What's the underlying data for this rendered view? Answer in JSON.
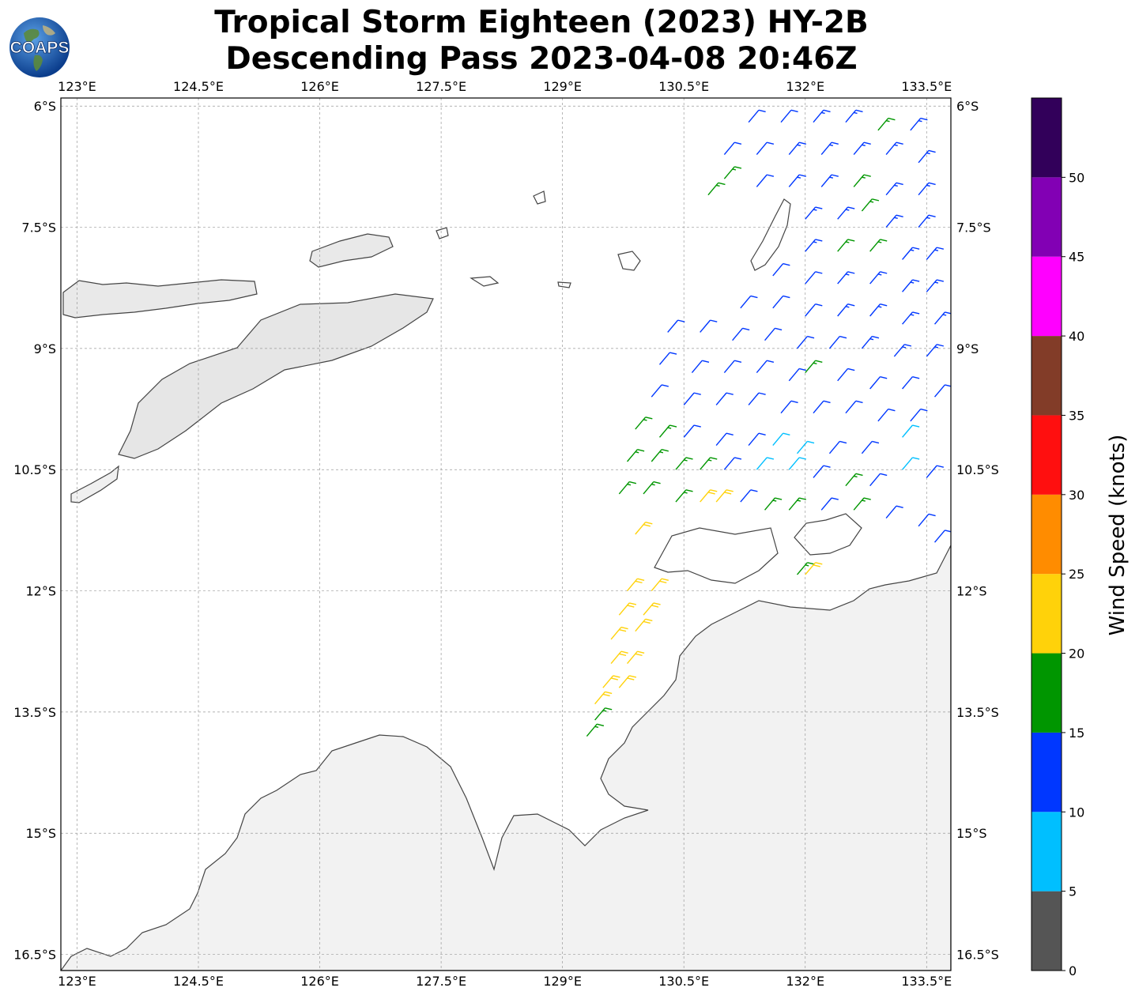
{
  "title": {
    "line1": "Tropical Storm Eighteen (2023) HY-2B",
    "line2": "Descending Pass 2023-04-08 20:46Z"
  },
  "logo": {
    "text": "COAPS",
    "icon": "globe-icon"
  },
  "map": {
    "lon_range": [
      122.8,
      133.8
    ],
    "lat_range": [
      -16.7,
      -5.9
    ],
    "lon_ticks": [
      {
        "value": 123.0,
        "label": "123°E"
      },
      {
        "value": 124.5,
        "label": "124.5°E"
      },
      {
        "value": 126.0,
        "label": "126°E"
      },
      {
        "value": 127.5,
        "label": "127.5°E"
      },
      {
        "value": 129.0,
        "label": "129°E"
      },
      {
        "value": 130.5,
        "label": "130.5°E"
      },
      {
        "value": 132.0,
        "label": "132°E"
      },
      {
        "value": 133.5,
        "label": "133.5°E"
      }
    ],
    "lat_ticks": [
      {
        "value": -6.0,
        "label": "6°S"
      },
      {
        "value": -7.5,
        "label": "7.5°S"
      },
      {
        "value": -9.0,
        "label": "9°S"
      },
      {
        "value": -10.5,
        "label": "10.5°S"
      },
      {
        "value": -12.0,
        "label": "12°S"
      },
      {
        "value": -13.5,
        "label": "13.5°S"
      },
      {
        "value": -15.0,
        "label": "15°S"
      },
      {
        "value": -16.5,
        "label": "16.5°S"
      }
    ],
    "gridlines": true,
    "coastline_color": "#444444",
    "land_fill": "#efefef"
  },
  "wind_barbs": [
    {
      "lon": 131.3,
      "lat": -6.2,
      "kt": 12
    },
    {
      "lon": 131.7,
      "lat": -6.2,
      "kt": 12
    },
    {
      "lon": 132.1,
      "lat": -6.2,
      "kt": 13
    },
    {
      "lon": 132.5,
      "lat": -6.2,
      "kt": 13
    },
    {
      "lon": 132.9,
      "lat": -6.3,
      "kt": 17
    },
    {
      "lon": 133.3,
      "lat": -6.3,
      "kt": 13
    },
    {
      "lon": 131.0,
      "lat": -6.6,
      "kt": 12
    },
    {
      "lon": 131.4,
      "lat": -6.6,
      "kt": 12
    },
    {
      "lon": 131.8,
      "lat": -6.6,
      "kt": 13
    },
    {
      "lon": 132.2,
      "lat": -6.6,
      "kt": 13
    },
    {
      "lon": 132.6,
      "lat": -6.6,
      "kt": 13
    },
    {
      "lon": 133.0,
      "lat": -6.6,
      "kt": 13
    },
    {
      "lon": 133.4,
      "lat": -6.7,
      "kt": 13
    },
    {
      "lon": 131.0,
      "lat": -6.9,
      "kt": 16
    },
    {
      "lon": 131.4,
      "lat": -7.0,
      "kt": 12
    },
    {
      "lon": 131.8,
      "lat": -7.0,
      "kt": 13
    },
    {
      "lon": 132.2,
      "lat": -7.0,
      "kt": 13
    },
    {
      "lon": 132.6,
      "lat": -7.0,
      "kt": 17
    },
    {
      "lon": 133.0,
      "lat": -7.1,
      "kt": 13
    },
    {
      "lon": 133.4,
      "lat": -7.1,
      "kt": 13
    },
    {
      "lon": 130.8,
      "lat": -7.1,
      "kt": 16
    },
    {
      "lon": 132.0,
      "lat": -7.4,
      "kt": 13
    },
    {
      "lon": 132.4,
      "lat": -7.4,
      "kt": 13
    },
    {
      "lon": 132.7,
      "lat": -7.3,
      "kt": 17
    },
    {
      "lon": 133.0,
      "lat": -7.5,
      "kt": 13
    },
    {
      "lon": 133.4,
      "lat": -7.5,
      "kt": 13
    },
    {
      "lon": 132.0,
      "lat": -7.8,
      "kt": 13
    },
    {
      "lon": 132.4,
      "lat": -7.8,
      "kt": 17
    },
    {
      "lon": 132.8,
      "lat": -7.8,
      "kt": 17
    },
    {
      "lon": 133.2,
      "lat": -7.9,
      "kt": 13
    },
    {
      "lon": 133.5,
      "lat": -7.9,
      "kt": 13
    },
    {
      "lon": 131.6,
      "lat": -8.1,
      "kt": 12
    },
    {
      "lon": 132.0,
      "lat": -8.2,
      "kt": 12
    },
    {
      "lon": 132.4,
      "lat": -8.2,
      "kt": 13
    },
    {
      "lon": 132.8,
      "lat": -8.2,
      "kt": 13
    },
    {
      "lon": 133.2,
      "lat": -8.3,
      "kt": 13
    },
    {
      "lon": 133.5,
      "lat": -8.3,
      "kt": 13
    },
    {
      "lon": 131.2,
      "lat": -8.5,
      "kt": 12
    },
    {
      "lon": 131.6,
      "lat": -8.5,
      "kt": 12
    },
    {
      "lon": 132.0,
      "lat": -8.6,
      "kt": 12
    },
    {
      "lon": 132.4,
      "lat": -8.6,
      "kt": 13
    },
    {
      "lon": 132.8,
      "lat": -8.6,
      "kt": 13
    },
    {
      "lon": 133.2,
      "lat": -8.7,
      "kt": 13
    },
    {
      "lon": 133.6,
      "lat": -8.7,
      "kt": 13
    },
    {
      "lon": 130.3,
      "lat": -8.8,
      "kt": 12
    },
    {
      "lon": 130.7,
      "lat": -8.8,
      "kt": 12
    },
    {
      "lon": 131.1,
      "lat": -8.9,
      "kt": 12
    },
    {
      "lon": 131.5,
      "lat": -8.9,
      "kt": 12
    },
    {
      "lon": 131.9,
      "lat": -9.0,
      "kt": 12
    },
    {
      "lon": 132.3,
      "lat": -9.0,
      "kt": 12
    },
    {
      "lon": 132.7,
      "lat": -9.0,
      "kt": 13
    },
    {
      "lon": 133.1,
      "lat": -9.1,
      "kt": 13
    },
    {
      "lon": 133.5,
      "lat": -9.1,
      "kt": 13
    },
    {
      "lon": 130.2,
      "lat": -9.2,
      "kt": 12
    },
    {
      "lon": 130.6,
      "lat": -9.3,
      "kt": 12
    },
    {
      "lon": 131.0,
      "lat": -9.3,
      "kt": 12
    },
    {
      "lon": 131.4,
      "lat": -9.3,
      "kt": 12
    },
    {
      "lon": 131.8,
      "lat": -9.4,
      "kt": 12
    },
    {
      "lon": 132.0,
      "lat": -9.3,
      "kt": 17
    },
    {
      "lon": 132.4,
      "lat": -9.4,
      "kt": 12
    },
    {
      "lon": 132.8,
      "lat": -9.5,
      "kt": 12
    },
    {
      "lon": 133.2,
      "lat": -9.5,
      "kt": 12
    },
    {
      "lon": 133.6,
      "lat": -9.6,
      "kt": 12
    },
    {
      "lon": 130.1,
      "lat": -9.6,
      "kt": 12
    },
    {
      "lon": 130.5,
      "lat": -9.7,
      "kt": 12
    },
    {
      "lon": 130.9,
      "lat": -9.7,
      "kt": 12
    },
    {
      "lon": 131.3,
      "lat": -9.7,
      "kt": 12
    },
    {
      "lon": 131.7,
      "lat": -9.8,
      "kt": 12
    },
    {
      "lon": 132.1,
      "lat": -9.8,
      "kt": 12
    },
    {
      "lon": 132.5,
      "lat": -9.8,
      "kt": 12
    },
    {
      "lon": 132.9,
      "lat": -9.9,
      "kt": 12
    },
    {
      "lon": 133.3,
      "lat": -9.9,
      "kt": 12
    },
    {
      "lon": 129.9,
      "lat": -10.0,
      "kt": 17
    },
    {
      "lon": 130.2,
      "lat": -10.1,
      "kt": 17
    },
    {
      "lon": 130.5,
      "lat": -10.1,
      "kt": 12
    },
    {
      "lon": 130.9,
      "lat": -10.2,
      "kt": 12
    },
    {
      "lon": 131.3,
      "lat": -10.2,
      "kt": 12
    },
    {
      "lon": 131.6,
      "lat": -10.2,
      "kt": 8
    },
    {
      "lon": 131.9,
      "lat": -10.3,
      "kt": 8
    },
    {
      "lon": 132.3,
      "lat": -10.3,
      "kt": 12
    },
    {
      "lon": 132.7,
      "lat": -10.3,
      "kt": 12
    },
    {
      "lon": 133.2,
      "lat": -10.1,
      "kt": 8
    },
    {
      "lon": 129.8,
      "lat": -10.4,
      "kt": 17
    },
    {
      "lon": 130.1,
      "lat": -10.4,
      "kt": 17
    },
    {
      "lon": 130.4,
      "lat": -10.5,
      "kt": 17
    },
    {
      "lon": 130.7,
      "lat": -10.5,
      "kt": 17
    },
    {
      "lon": 131.0,
      "lat": -10.5,
      "kt": 12
    },
    {
      "lon": 131.4,
      "lat": -10.5,
      "kt": 8
    },
    {
      "lon": 131.8,
      "lat": -10.5,
      "kt": 8
    },
    {
      "lon": 132.1,
      "lat": -10.6,
      "kt": 12
    },
    {
      "lon": 132.5,
      "lat": -10.7,
      "kt": 17
    },
    {
      "lon": 132.8,
      "lat": -10.7,
      "kt": 12
    },
    {
      "lon": 133.2,
      "lat": -10.5,
      "kt": 8
    },
    {
      "lon": 133.5,
      "lat": -10.6,
      "kt": 12
    },
    {
      "lon": 129.7,
      "lat": -10.8,
      "kt": 17
    },
    {
      "lon": 130.0,
      "lat": -10.8,
      "kt": 17
    },
    {
      "lon": 130.4,
      "lat": -10.9,
      "kt": 17
    },
    {
      "lon": 130.7,
      "lat": -10.9,
      "kt": 22
    },
    {
      "lon": 130.9,
      "lat": -10.9,
      "kt": 22
    },
    {
      "lon": 131.2,
      "lat": -10.9,
      "kt": 12
    },
    {
      "lon": 131.5,
      "lat": -11.0,
      "kt": 17
    },
    {
      "lon": 131.8,
      "lat": -11.0,
      "kt": 17
    },
    {
      "lon": 132.2,
      "lat": -11.0,
      "kt": 12
    },
    {
      "lon": 132.6,
      "lat": -11.0,
      "kt": 17
    },
    {
      "lon": 133.0,
      "lat": -11.1,
      "kt": 12
    },
    {
      "lon": 133.4,
      "lat": -11.2,
      "kt": 12
    },
    {
      "lon": 133.6,
      "lat": -11.4,
      "kt": 12
    },
    {
      "lon": 129.9,
      "lat": -11.3,
      "kt": 22
    },
    {
      "lon": 131.9,
      "lat": -11.8,
      "kt": 17
    },
    {
      "lon": 132.0,
      "lat": -11.8,
      "kt": 22
    },
    {
      "lon": 129.8,
      "lat": -12.0,
      "kt": 22
    },
    {
      "lon": 130.1,
      "lat": -12.0,
      "kt": 22
    },
    {
      "lon": 129.7,
      "lat": -12.3,
      "kt": 22
    },
    {
      "lon": 130.0,
      "lat": -12.3,
      "kt": 22
    },
    {
      "lon": 129.6,
      "lat": -12.6,
      "kt": 22
    },
    {
      "lon": 129.9,
      "lat": -12.5,
      "kt": 22
    },
    {
      "lon": 129.6,
      "lat": -12.9,
      "kt": 22
    },
    {
      "lon": 129.8,
      "lat": -12.9,
      "kt": 22
    },
    {
      "lon": 129.5,
      "lat": -13.2,
      "kt": 22
    },
    {
      "lon": 129.7,
      "lat": -13.2,
      "kt": 22
    },
    {
      "lon": 129.4,
      "lat": -13.4,
      "kt": 22
    },
    {
      "lon": 129.4,
      "lat": -13.6,
      "kt": 17
    },
    {
      "lon": 129.3,
      "lat": -13.8,
      "kt": 17
    }
  ],
  "colorbar": {
    "label": "Wind Speed (knots)",
    "bins": [
      {
        "min": 0,
        "max": 5,
        "color": "#555555"
      },
      {
        "min": 5,
        "max": 10,
        "color": "#00bfff"
      },
      {
        "min": 10,
        "max": 15,
        "color": "#0037ff"
      },
      {
        "min": 15,
        "max": 20,
        "color": "#009600"
      },
      {
        "min": 20,
        "max": 25,
        "color": "#ffd20a"
      },
      {
        "min": 25,
        "max": 30,
        "color": "#ff8c00"
      },
      {
        "min": 30,
        "max": 35,
        "color": "#ff0f0f"
      },
      {
        "min": 35,
        "max": 40,
        "color": "#823c28"
      },
      {
        "min": 40,
        "max": 45,
        "color": "#ff00ff"
      },
      {
        "min": 45,
        "max": 50,
        "color": "#8200b4"
      },
      {
        "min": 50,
        "max": 55,
        "color": "#32005a"
      }
    ],
    "tick_labels": [
      "0",
      "5",
      "10",
      "15",
      "20",
      "25",
      "30",
      "35",
      "40",
      "45",
      "50"
    ]
  }
}
